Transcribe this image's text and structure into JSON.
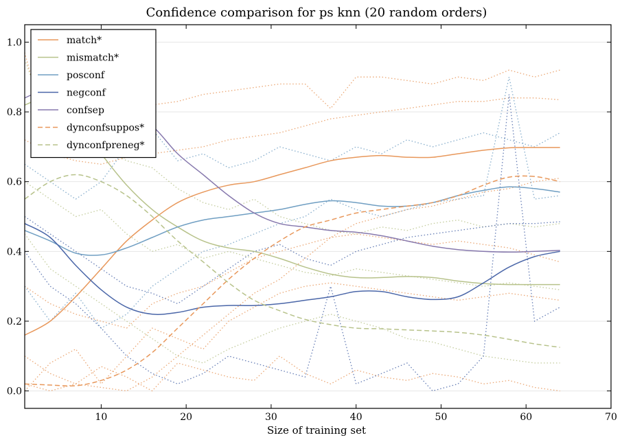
{
  "chart_data": {
    "type": "line",
    "title": "Confidence comparison for ps knn (20 random orders)",
    "xlabel": "Size of training set",
    "ylabel": "",
    "xlim": [
      1,
      70
    ],
    "ylim": [
      -0.05,
      1.05
    ],
    "xticks": [
      10,
      20,
      30,
      40,
      50,
      60,
      70
    ],
    "yticks": [
      0.0,
      0.2,
      0.4,
      0.6,
      0.8,
      1.0
    ],
    "x": [
      1,
      4,
      7,
      10,
      13,
      16,
      19,
      22,
      25,
      28,
      31,
      34,
      37,
      40,
      43,
      46,
      49,
      52,
      55,
      58,
      61,
      64
    ],
    "grid": "horizontal",
    "legend_position": "top-left",
    "series": [
      {
        "name": "match*",
        "color": "#e8975a",
        "style": "solid",
        "values": [
          0.16,
          0.2,
          0.27,
          0.35,
          0.43,
          0.49,
          0.54,
          0.57,
          0.59,
          0.6,
          0.62,
          0.64,
          0.66,
          0.67,
          0.675,
          0.67,
          0.67,
          0.68,
          0.69,
          0.697,
          0.698,
          0.698
        ]
      },
      {
        "name": "mismatch*",
        "color": "#b7c28a",
        "style": "solid",
        "values": [
          0.82,
          0.84,
          0.78,
          0.68,
          0.59,
          0.52,
          0.47,
          0.43,
          0.41,
          0.4,
          0.38,
          0.355,
          0.335,
          0.325,
          0.325,
          0.328,
          0.325,
          0.315,
          0.308,
          0.305,
          0.305,
          0.305
        ]
      },
      {
        "name": "posconf",
        "color": "#6f9ec2",
        "style": "solid",
        "values": [
          0.46,
          0.43,
          0.395,
          0.39,
          0.41,
          0.44,
          0.47,
          0.49,
          0.5,
          0.51,
          0.52,
          0.535,
          0.545,
          0.54,
          0.53,
          0.53,
          0.54,
          0.56,
          0.575,
          0.585,
          0.58,
          0.57
        ]
      },
      {
        "name": "negconf",
        "color": "#4a66a8",
        "style": "solid",
        "values": [
          0.48,
          0.44,
          0.36,
          0.29,
          0.24,
          0.22,
          0.225,
          0.24,
          0.245,
          0.245,
          0.25,
          0.26,
          0.27,
          0.285,
          0.285,
          0.27,
          0.262,
          0.27,
          0.31,
          0.355,
          0.385,
          0.4
        ]
      },
      {
        "name": "confsep",
        "color": "#8678ad",
        "style": "solid",
        "values": [
          0.84,
          0.87,
          0.87,
          0.84,
          0.8,
          0.76,
          0.68,
          0.62,
          0.56,
          0.51,
          0.48,
          0.47,
          0.46,
          0.455,
          0.445,
          0.43,
          0.415,
          0.405,
          0.4,
          0.398,
          0.4,
          0.403
        ]
      },
      {
        "name": "dynconfsuppos*",
        "color": "#e8975a",
        "style": "dashed",
        "values": [
          0.02,
          0.017,
          0.015,
          0.03,
          0.06,
          0.11,
          0.18,
          0.25,
          0.32,
          0.38,
          0.43,
          0.47,
          0.49,
          0.51,
          0.52,
          0.53,
          0.54,
          0.56,
          0.59,
          0.613,
          0.615,
          0.6
        ]
      },
      {
        "name": "dynconfpreneg*",
        "color": "#b7c28a",
        "style": "dashed",
        "values": [
          0.55,
          0.6,
          0.62,
          0.6,
          0.56,
          0.5,
          0.43,
          0.37,
          0.31,
          0.26,
          0.23,
          0.205,
          0.19,
          0.18,
          0.178,
          0.175,
          0.172,
          0.168,
          0.16,
          0.148,
          0.135,
          0.125
        ]
      }
    ],
    "individual_runs": [
      {
        "color": "#e8975a",
        "values": [
          0.97,
          0.7,
          0.72,
          0.78,
          0.8,
          0.82,
          0.83,
          0.85,
          0.86,
          0.87,
          0.88,
          0.88,
          0.81,
          0.9,
          0.9,
          0.89,
          0.88,
          0.9,
          0.89,
          0.92,
          0.9,
          0.92
        ]
      },
      {
        "color": "#e8975a",
        "values": [
          0.72,
          0.68,
          0.66,
          0.65,
          0.67,
          0.68,
          0.69,
          0.7,
          0.72,
          0.73,
          0.74,
          0.76,
          0.78,
          0.79,
          0.8,
          0.81,
          0.82,
          0.83,
          0.83,
          0.84,
          0.84,
          0.835
        ]
      },
      {
        "color": "#e8975a",
        "values": [
          0.1,
          0.05,
          0.02,
          0.07,
          0.04,
          0.0,
          0.08,
          0.06,
          0.04,
          0.03,
          0.1,
          0.05,
          0.02,
          0.06,
          0.04,
          0.03,
          0.05,
          0.04,
          0.02,
          0.03,
          0.01,
          0.0
        ]
      },
      {
        "color": "#e8975a",
        "values": [
          0.3,
          0.25,
          0.22,
          0.2,
          0.18,
          0.25,
          0.28,
          0.3,
          0.34,
          0.38,
          0.4,
          0.42,
          0.44,
          0.45,
          0.44,
          0.43,
          0.42,
          0.43,
          0.42,
          0.41,
          0.39,
          0.37
        ]
      },
      {
        "color": "#e8975a",
        "values": [
          0.02,
          0.0,
          0.02,
          0.01,
          0.0,
          0.04,
          0.1,
          0.16,
          0.22,
          0.28,
          0.32,
          0.38,
          0.44,
          0.48,
          0.5,
          0.52,
          0.53,
          0.55,
          0.57,
          0.58,
          0.6,
          0.61
        ]
      },
      {
        "color": "#e8975a",
        "values": [
          0.0,
          0.08,
          0.12,
          0.02,
          0.1,
          0.18,
          0.15,
          0.12,
          0.2,
          0.24,
          0.28,
          0.3,
          0.31,
          0.3,
          0.29,
          0.28,
          0.27,
          0.26,
          0.27,
          0.28,
          0.27,
          0.26
        ]
      },
      {
        "color": "#b7c28a",
        "values": [
          0.95,
          0.75,
          0.78,
          0.7,
          0.66,
          0.64,
          0.58,
          0.54,
          0.52,
          0.55,
          0.5,
          0.48,
          0.46,
          0.45,
          0.47,
          0.46,
          0.48,
          0.49,
          0.47,
          0.48,
          0.47,
          0.48
        ]
      },
      {
        "color": "#b7c28a",
        "values": [
          0.45,
          0.35,
          0.3,
          0.25,
          0.2,
          0.15,
          0.1,
          0.08,
          0.12,
          0.15,
          0.18,
          0.2,
          0.22,
          0.2,
          0.18,
          0.15,
          0.14,
          0.12,
          0.1,
          0.09,
          0.08,
          0.08
        ]
      },
      {
        "color": "#b7c28a",
        "values": [
          0.6,
          0.55,
          0.5,
          0.52,
          0.45,
          0.4,
          0.42,
          0.38,
          0.4,
          0.38,
          0.36,
          0.34,
          0.33,
          0.35,
          0.34,
          0.33,
          0.32,
          0.31,
          0.3,
          0.31,
          0.3,
          0.29
        ]
      },
      {
        "color": "#6f9ec2",
        "values": [
          0.65,
          0.6,
          0.55,
          0.6,
          0.7,
          0.75,
          0.66,
          0.68,
          0.64,
          0.66,
          0.7,
          0.68,
          0.66,
          0.7,
          0.68,
          0.72,
          0.7,
          0.72,
          0.74,
          0.72,
          0.7,
          0.74
        ]
      },
      {
        "color": "#6f9ec2",
        "values": [
          0.3,
          0.2,
          0.28,
          0.18,
          0.22,
          0.3,
          0.35,
          0.4,
          0.42,
          0.45,
          0.48,
          0.5,
          0.55,
          0.52,
          0.5,
          0.52,
          0.54,
          0.55,
          0.56,
          0.9,
          0.55,
          0.56
        ]
      },
      {
        "color": "#4a66a8",
        "values": [
          0.4,
          0.3,
          0.25,
          0.18,
          0.1,
          0.05,
          0.02,
          0.05,
          0.1,
          0.08,
          0.06,
          0.04,
          0.3,
          0.02,
          0.05,
          0.08,
          0.0,
          0.02,
          0.1,
          0.85,
          0.2,
          0.24
        ]
      },
      {
        "color": "#4a66a8",
        "values": [
          0.5,
          0.45,
          0.4,
          0.35,
          0.3,
          0.28,
          0.25,
          0.3,
          0.35,
          0.4,
          0.42,
          0.38,
          0.36,
          0.4,
          0.42,
          0.44,
          0.45,
          0.46,
          0.47,
          0.48,
          0.48,
          0.485
        ]
      }
    ]
  }
}
